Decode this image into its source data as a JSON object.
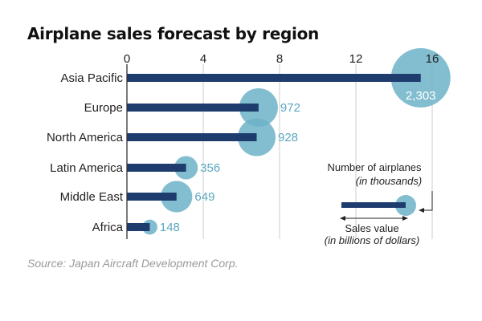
{
  "chart_data": {
    "type": "bar",
    "title": "Airplane sales forecast by region",
    "source": "Source: Japan Aircraft Development Corp.",
    "categories": [
      "Asia Pacific",
      "Europe",
      "North America",
      "Latin America",
      "Middle East",
      "Africa"
    ],
    "series": [
      {
        "name": "Sales value",
        "unit": "in billions of dollars",
        "values": [
          15.4,
          6.9,
          6.8,
          3.1,
          2.6,
          1.2
        ]
      },
      {
        "name": "Number of airplanes",
        "unit": "in thousands",
        "values": [
          2303,
          972,
          928,
          356,
          649,
          148
        ],
        "labels": [
          "2,303",
          "972",
          "928",
          "356",
          "649",
          "148"
        ]
      }
    ],
    "xticks": [
      "0",
      "4",
      "8",
      "12",
      "16"
    ],
    "xlim": [
      0,
      16
    ],
    "grid": true,
    "legend": {
      "placement": "bottom-right",
      "circle_label": "Number of airplanes",
      "circle_unit": "(in thousands)",
      "bar_label": "Sales value",
      "bar_unit": "(in billions of dollars)"
    },
    "colors": {
      "bar": "#1f3c6e",
      "bubble": "#6db3c8",
      "grid": "#cccccc",
      "label": "#5aa7bf",
      "axis": "#333333"
    }
  }
}
